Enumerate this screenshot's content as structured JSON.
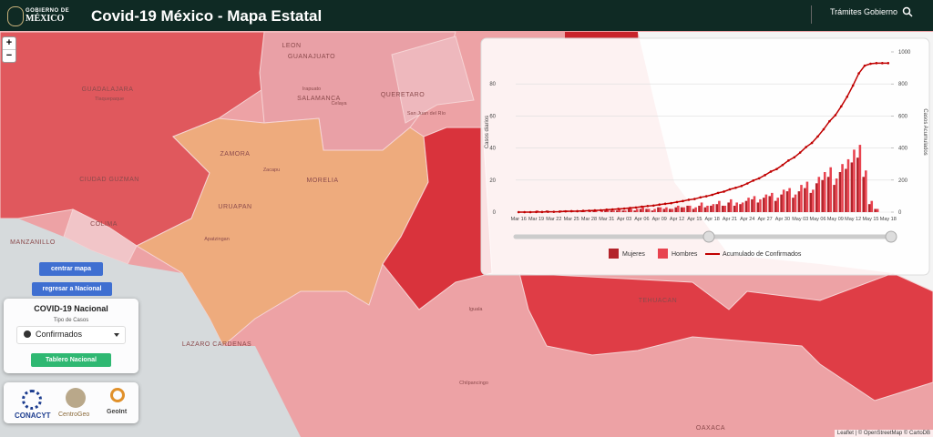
{
  "header": {
    "logo_top": "GOBIERNO DE",
    "logo_bottom": "MÉXICO",
    "title": "Covid-19 México - Mapa Estatal",
    "nav": [
      "Trámites",
      "Gobierno"
    ]
  },
  "zoom": [
    "+",
    "−"
  ],
  "controls": {
    "center": "centrar mapa",
    "back": "regresar a Nacional",
    "panel_title": "COVID-19 Nacional",
    "case_type_label": "Tipo de Casos",
    "case_type": "Confirmados",
    "dashboard": "Tablero Nacional"
  },
  "logos": [
    "CONACYT",
    "CentroGeo",
    "GeoInt"
  ],
  "map_labels": [
    "LEON",
    "GUANAJUATO",
    "Irapuato",
    "SALAMANCA",
    "Celaya",
    "QUERETARO",
    "San Juan del Río",
    "GUADALAJARA",
    "Tlaquepaque",
    "ZAMORA",
    "Zacapu",
    "MORELIA",
    "URUAPAN",
    "Apatzingan",
    "CIUDAD GUZMAN",
    "COLIMA",
    "MANZANILLO",
    "LAZARO CARDENAS",
    "Iguala",
    "Chilpancingo",
    "TEHUACAN",
    "OAXACA"
  ],
  "attribution": "Leaflet | © OpenStreetMap © CartoDB",
  "chart_data": {
    "type": "bar",
    "y_label": "Casos diarios",
    "y2_label": "Casos Acumulados",
    "categories": [
      "Mar 16",
      null,
      null,
      "Mar 19",
      null,
      null,
      "Mar 22",
      null,
      null,
      "Mar 25",
      null,
      null,
      "Mar 28",
      null,
      null,
      "Mar 31",
      null,
      null,
      "Apr 03",
      null,
      null,
      "Apr 06",
      null,
      null,
      "Apr 09",
      null,
      null,
      "Apr 12",
      null,
      null,
      "Apr 15",
      null,
      null,
      "Apr 18",
      null,
      null,
      "Apr 21",
      null,
      null,
      "Apr 24",
      null,
      null,
      "Apr 27",
      null,
      null,
      "Apr 30",
      null,
      null,
      "May 03",
      null,
      null,
      "May 06",
      null,
      null,
      "May 09",
      null,
      null,
      "May 12",
      null,
      null,
      "May 15",
      null,
      null,
      "May 18"
    ],
    "ylim": [
      0,
      100
    ],
    "yticks": [
      0,
      20,
      40,
      60,
      80
    ],
    "y2lim": [
      0,
      1000
    ],
    "y2ticks": [
      0,
      200,
      400,
      600,
      800,
      1000
    ],
    "grid": true,
    "series": [
      {
        "name": "Mujeres",
        "color": "#b3232a",
        "values": [
          0,
          0,
          0,
          0,
          0,
          1,
          0,
          0,
          1,
          0,
          0,
          1,
          0,
          1,
          0,
          1,
          1,
          1,
          1,
          2,
          1,
          2,
          2,
          1,
          3,
          2,
          2,
          3,
          3,
          4,
          2,
          4,
          3,
          4,
          5,
          4,
          6,
          4,
          5,
          7,
          8,
          6,
          9,
          10,
          7,
          11,
          13,
          9,
          13,
          15,
          12,
          18,
          20,
          22,
          17,
          25,
          27,
          31,
          34,
          22,
          5,
          2,
          0,
          0
        ]
      },
      {
        "name": "Hombres",
        "color": "#e8434f",
        "values": [
          0,
          0,
          0,
          1,
          0,
          0,
          0,
          1,
          1,
          1,
          0,
          1,
          1,
          1,
          1,
          2,
          1,
          2,
          1,
          2,
          2,
          3,
          2,
          2,
          3,
          3,
          2,
          4,
          3,
          4,
          3,
          6,
          4,
          5,
          7,
          4,
          8,
          6,
          6,
          9,
          10,
          8,
          11,
          12,
          9,
          14,
          15,
          11,
          17,
          19,
          14,
          22,
          25,
          28,
          21,
          30,
          33,
          39,
          42,
          26,
          7,
          2,
          0,
          0
        ]
      },
      {
        "name": "Acumulado de Confirmados",
        "color": "#c00000",
        "type": "line",
        "axis": "y2",
        "values": [
          0,
          0,
          0,
          1,
          1,
          2,
          2,
          3,
          5,
          6,
          6,
          8,
          9,
          11,
          12,
          15,
          17,
          20,
          22,
          26,
          29,
          34,
          38,
          41,
          47,
          52,
          56,
          63,
          69,
          77,
          82,
          92,
          99,
          108,
          120,
          128,
          142,
          152,
          163,
          179,
          197,
          211,
          231,
          253,
          269,
          294,
          322,
          342,
          372,
          406,
          432,
          472,
          517,
          567,
          605,
          660,
          720,
          790,
          866,
          914,
          926,
          930,
          930,
          930
        ]
      }
    ]
  }
}
